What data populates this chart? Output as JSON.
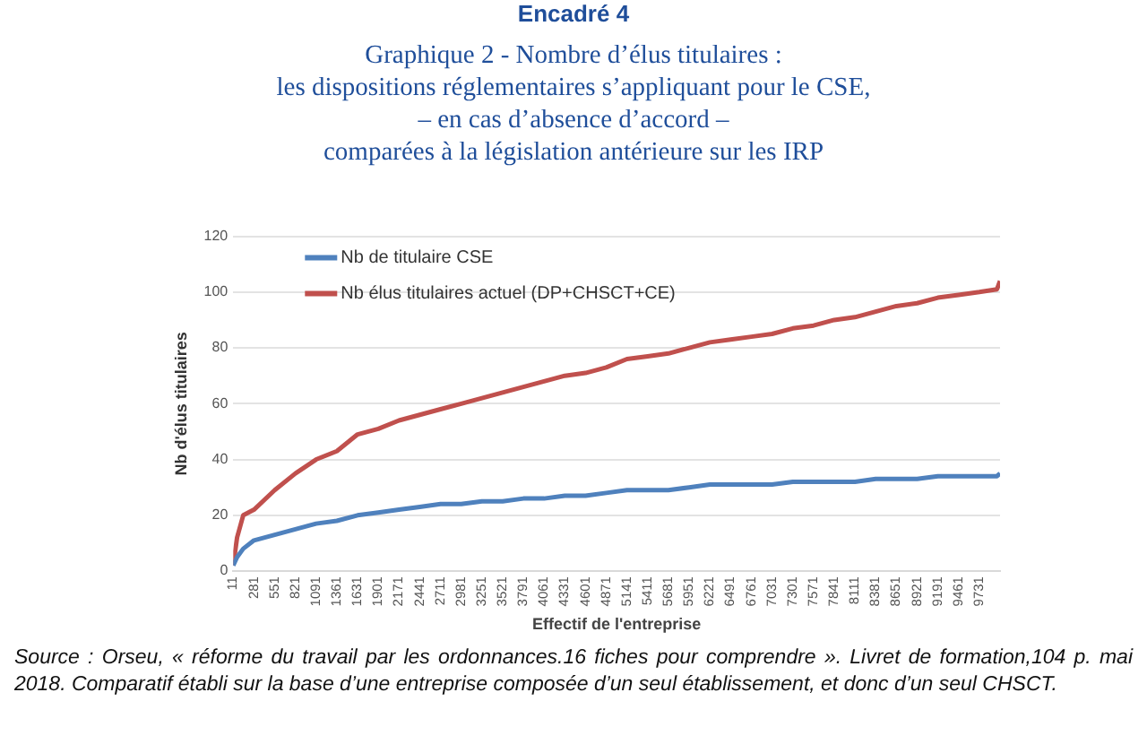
{
  "chart_data": {
    "type": "line",
    "title": "Encadré 4",
    "subtitle": "Graphique 2 - Nombre d’élus titulaires :\nles dispositions réglementaires s’appliquant pour le CSE,\n– en cas d’absence d’accord –\ncomparées à la législation antérieure sur les IRP",
    "xlabel": "Effectif de l'entreprise",
    "ylabel": "Nb d'élus titulaires",
    "x": [
      11,
      61,
      141,
      281,
      551,
      821,
      1091,
      1361,
      1631,
      1901,
      2171,
      2441,
      2711,
      2981,
      3251,
      3521,
      3791,
      4061,
      4331,
      4601,
      4871,
      5141,
      5411,
      5681,
      5951,
      6221,
      6491,
      6761,
      7031,
      7301,
      7571,
      7841,
      8111,
      8381,
      8651,
      8921,
      9191,
      9461,
      9731,
      9961,
      10001
    ],
    "series": [
      {
        "name": "Nb de titulaire CSE",
        "color": "#4f81bd",
        "values": [
          2,
          5,
          8,
          11,
          13,
          15,
          17,
          18,
          20,
          21,
          22,
          23,
          24,
          24,
          25,
          25,
          26,
          26,
          27,
          27,
          28,
          29,
          29,
          29,
          30,
          31,
          31,
          31,
          31,
          32,
          32,
          32,
          32,
          33,
          33,
          33,
          34,
          34,
          34,
          34,
          35
        ]
      },
      {
        "name": "Nb élus titulaires actuel (DP+CHSCT+CE)",
        "color": "#c0504d",
        "values": [
          2,
          12,
          20,
          22,
          29,
          35,
          40,
          43,
          49,
          51,
          54,
          56,
          58,
          60,
          62,
          64,
          66,
          68,
          70,
          71,
          73,
          76,
          77,
          78,
          80,
          82,
          83,
          84,
          85,
          87,
          88,
          90,
          91,
          93,
          95,
          96,
          98,
          99,
          100,
          101,
          104
        ]
      }
    ],
    "xlim": [
      11,
      10001
    ],
    "xticks": [
      11,
      281,
      551,
      821,
      1091,
      1361,
      1631,
      1901,
      2171,
      2441,
      2711,
      2981,
      3251,
      3521,
      3791,
      4061,
      4331,
      4601,
      4871,
      5141,
      5411,
      5681,
      5951,
      6221,
      6491,
      6761,
      7031,
      7301,
      7571,
      7841,
      8111,
      8381,
      8651,
      8921,
      9191,
      9461,
      9731
    ],
    "ylim": [
      0,
      120
    ],
    "yticks": [
      0,
      20,
      40,
      60,
      80,
      100,
      120
    ],
    "grid": "y",
    "legend": "top left",
    "marker": "none",
    "line_style": "solid",
    "annotations": [
      "Source : Orseu, « réforme du travail par les ordonnances.16 fiches pour comprendre ». Livret de formation,104 p. mai 2018. Comparatif établi sur la base d’une entreprise composée d’un seul établissement, et donc d’un seul CHSCT."
    ]
  }
}
